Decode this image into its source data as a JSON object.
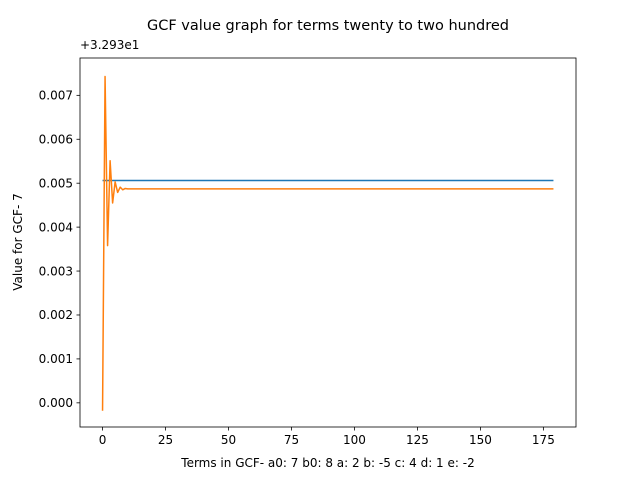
{
  "chart_data": {
    "type": "line",
    "title": "GCF value graph for terms twenty to two hundred",
    "xlabel": "Terms in GCF-  a0: 7 b0: 8 a: 2 b: -5 c: 4 d: 1 e: -2",
    "ylabel": "Value for GCF- 7",
    "offset_label": "+3.293e1",
    "xlim": [
      -8.95,
      187.95
    ],
    "ylim": [
      -0.00055,
      0.00785
    ],
    "x_ticks": [
      0,
      25,
      50,
      75,
      100,
      125,
      150,
      175
    ],
    "x_tick_labels": [
      "0",
      "25",
      "50",
      "75",
      "100",
      "125",
      "150",
      "175"
    ],
    "y_ticks": [
      0.0,
      0.001,
      0.002,
      0.003,
      0.004,
      0.005,
      0.006,
      0.007
    ],
    "y_tick_labels": [
      "0.000",
      "0.001",
      "0.002",
      "0.003",
      "0.004",
      "0.005",
      "0.006",
      "0.007"
    ],
    "grid": false,
    "series": [
      {
        "color": "#1f77b4",
        "x": [
          0,
          179
        ],
        "values": [
          0.00506,
          0.00506
        ]
      },
      {
        "color": "#ff7f0e",
        "x": [
          0,
          1,
          2,
          3,
          4,
          5,
          6,
          7,
          8,
          9,
          10,
          12,
          15,
          20,
          179
        ],
        "values": [
          -0.00018,
          0.00743,
          0.00358,
          0.00551,
          0.00455,
          0.00503,
          0.00479,
          0.00491,
          0.00485,
          0.00488,
          0.00487,
          0.00487,
          0.00487,
          0.00487,
          0.00487
        ]
      }
    ]
  }
}
